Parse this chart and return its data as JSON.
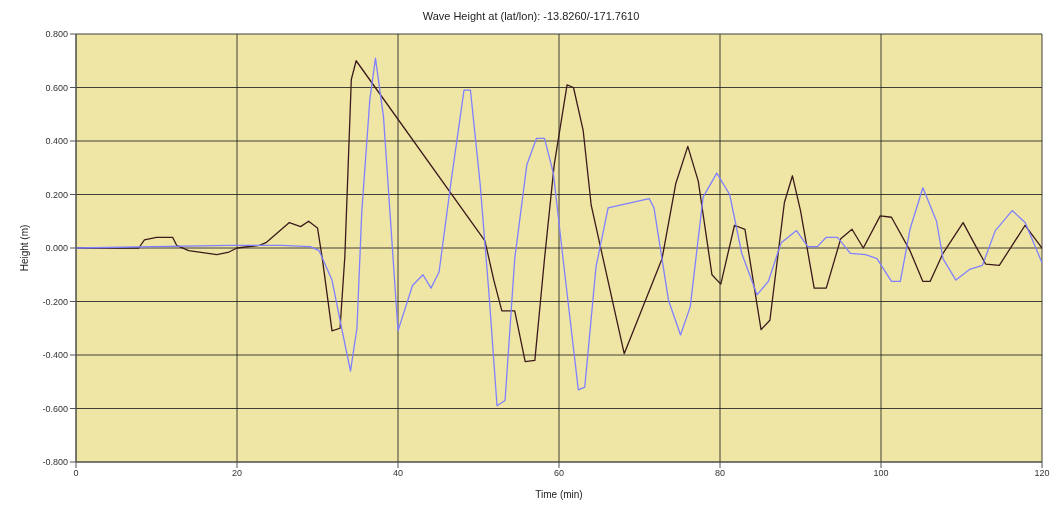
{
  "chart_data": {
    "type": "line",
    "title": "Wave Height at (lat/lon): -13.8260/-171.7610",
    "xlabel": "Time (min)",
    "ylabel": "Height (m)",
    "xlim": [
      0,
      120
    ],
    "xticks": [
      0,
      20,
      40,
      60,
      80,
      100,
      120
    ],
    "ylim": [
      -0.8,
      0.8
    ],
    "yticks": [
      {
        "value": -0.8,
        "label": "-0.800"
      },
      {
        "value": -0.6,
        "label": "-0.600"
      },
      {
        "value": -0.4,
        "label": "-0.400"
      },
      {
        "value": -0.2,
        "label": "-0.200"
      },
      {
        "value": 0,
        "label": "0.000"
      },
      {
        "value": 0.2,
        "label": "0.200"
      },
      {
        "value": 0.4,
        "label": "0.400"
      },
      {
        "value": 0.6,
        "label": "0.600"
      },
      {
        "value": 0.8,
        "label": "0.800"
      }
    ],
    "grid": true,
    "legend": false,
    "line_style": "solid",
    "series": [
      {
        "color": "#3a1a1a",
        "x": [
          0,
          7.8,
          8.5,
          10,
          12,
          12.5,
          14,
          17.5,
          19,
          20,
          22.8,
          23.6,
          26.5,
          27.9,
          28.9,
          30,
          30.6,
          31.8,
          32.8,
          33.4,
          34.2,
          34.8,
          50.8,
          51.9,
          52.9,
          54.5,
          55.8,
          57,
          58.2,
          59.4,
          61,
          61.8,
          63,
          64,
          68.1,
          72.8,
          74.5,
          76,
          77.3,
          79,
          80.1,
          81.8,
          83.1,
          85.1,
          86.2,
          88,
          89,
          90,
          91.7,
          93.2,
          95,
          96.4,
          97.8,
          99.9,
          101.3,
          103.6,
          105.2,
          106.1,
          107.7,
          110.2,
          111.8,
          113,
          114.7,
          117.9,
          120
        ],
        "values": [
          0,
          0,
          0.03,
          0.04,
          0.04,
          0.01,
          -0.01,
          -0.025,
          -0.015,
          0,
          0.01,
          0.02,
          0.095,
          0.08,
          0.1,
          0.075,
          -0.04,
          -0.31,
          -0.3,
          -0.03,
          0.63,
          0.7,
          0.027,
          -0.12,
          -0.235,
          -0.235,
          -0.425,
          -0.42,
          -0.04,
          0.31,
          0.61,
          0.6,
          0.44,
          0.16,
          -0.395,
          -0.04,
          0.24,
          0.38,
          0.25,
          -0.1,
          -0.135,
          0.085,
          0.07,
          -0.305,
          -0.27,
          0.17,
          0.27,
          0.14,
          -0.15,
          -0.15,
          0.035,
          0.07,
          0,
          0.12,
          0.115,
          -0.01,
          -0.125,
          -0.125,
          -0.02,
          0.095,
          0.005,
          -0.06,
          -0.065,
          0.085,
          0
        ]
      },
      {
        "color": "#8080ff",
        "x": [
          0,
          19,
          25.6,
          29.1,
          30.2,
          31.8,
          33,
          34.1,
          34.9,
          35.5,
          36.5,
          37.2,
          38.2,
          40,
          41.8,
          43.1,
          44.1,
          45.1,
          46.6,
          48.2,
          49,
          50.2,
          51.3,
          52.3,
          53.3,
          54.5,
          56,
          57.2,
          58.2,
          59.3,
          60.5,
          62.4,
          63.2,
          64.6,
          66.1,
          71.2,
          71.8,
          73.6,
          75.1,
          76.3,
          77.9,
          79.6,
          81.2,
          82.7,
          84.6,
          86,
          87.6,
          89.5,
          90.9,
          92.1,
          93.2,
          94.6,
          96.2,
          98.1,
          99.5,
          101.3,
          102.4,
          103.6,
          105.2,
          106.9,
          107.7,
          109.3,
          111,
          112.6,
          114.2,
          116.3,
          117.9,
          120
        ],
        "values": [
          0,
          0.01,
          0.01,
          0.005,
          -0.01,
          -0.12,
          -0.3,
          -0.46,
          -0.3,
          0.135,
          0.555,
          0.71,
          0.49,
          -0.31,
          -0.14,
          -0.1,
          -0.15,
          -0.09,
          0.25,
          0.59,
          0.59,
          0.24,
          -0.17,
          -0.59,
          -0.57,
          -0.04,
          0.31,
          0.41,
          0.41,
          0.28,
          -0.04,
          -0.53,
          -0.52,
          -0.07,
          0.15,
          0.185,
          0.15,
          -0.195,
          -0.325,
          -0.22,
          0.19,
          0.28,
          0.2,
          -0.02,
          -0.175,
          -0.125,
          0.02,
          0.065,
          0.005,
          0.005,
          0.04,
          0.04,
          -0.02,
          -0.025,
          -0.04,
          -0.125,
          -0.125,
          0.07,
          0.225,
          0.1,
          -0.04,
          -0.12,
          -0.08,
          -0.065,
          0.065,
          0.14,
          0.095,
          -0.055
        ]
      }
    ]
  }
}
